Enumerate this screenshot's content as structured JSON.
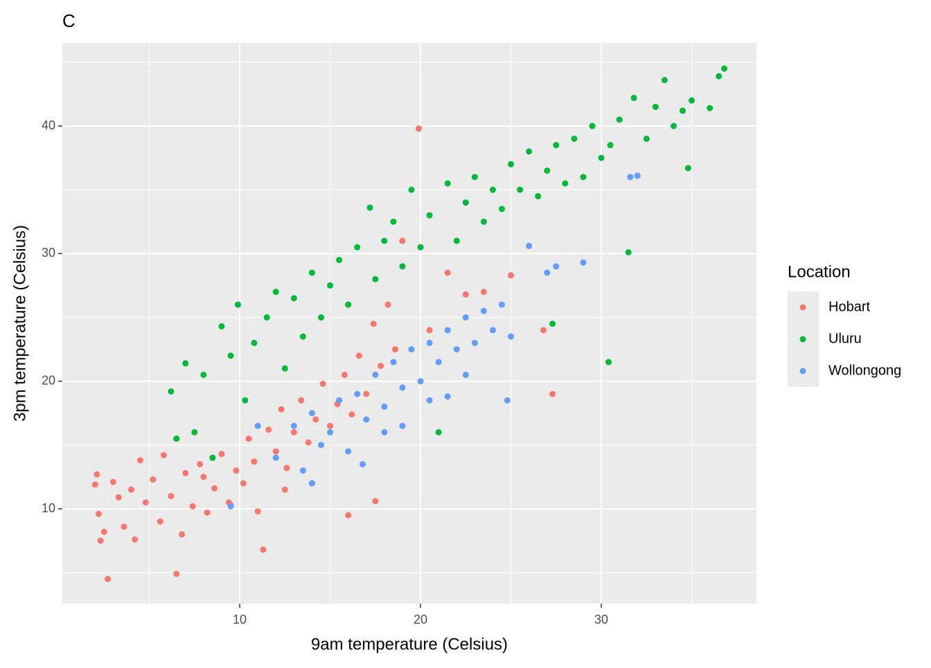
{
  "chart_data": {
    "type": "scatter",
    "title": "C",
    "x_label": "9am temperature (Celsius)",
    "y_label": "3pm temperature (Celsius)",
    "legend_title": "Location",
    "legend_position": "right",
    "xlim": [
      0.19,
      38.58
    ],
    "ylim": [
      2.57,
      46.51
    ],
    "xticks": [
      10,
      20,
      30
    ],
    "yticks": [
      10,
      20,
      30,
      40
    ],
    "x_minor_grid": [
      5,
      15,
      25,
      35
    ],
    "y_minor_grid": [
      5,
      15,
      25,
      35,
      45
    ],
    "grid": true,
    "panel_color": "#ebebeb",
    "series": [
      {
        "name": "Hobart",
        "color": "#F8766D",
        "x": [
          2.0,
          2.1,
          2.2,
          2.3,
          2.5,
          2.7,
          3.0,
          3.3,
          3.6,
          4.0,
          4.2,
          4.5,
          4.8,
          5.2,
          5.6,
          5.8,
          6.2,
          6.5,
          6.8,
          7.0,
          7.4,
          7.8,
          8.2,
          8.6,
          9.0,
          9.4,
          9.8,
          10.2,
          10.5,
          10.8,
          11.0,
          11.3,
          11.6,
          12.0,
          12.3,
          12.6,
          13.0,
          13.4,
          13.8,
          14.2,
          14.6,
          15.0,
          15.4,
          15.8,
          16.2,
          16.6,
          17.0,
          17.4,
          17.8,
          18.2,
          18.6,
          19.0,
          19.9,
          20.5,
          21.5,
          22.5,
          23.5,
          25.0,
          26.8,
          27.3,
          9.5,
          8.0,
          12.5,
          14.0,
          16.0,
          17.5
        ],
        "values": [
          11.9,
          12.7,
          9.6,
          7.5,
          8.2,
          4.5,
          12.1,
          10.9,
          8.6,
          11.5,
          7.6,
          13.8,
          10.5,
          12.3,
          9.0,
          14.2,
          11.0,
          4.9,
          8.0,
          12.8,
          10.2,
          13.5,
          9.7,
          11.6,
          14.3,
          10.5,
          13.0,
          12.0,
          15.5,
          13.7,
          9.8,
          6.8,
          16.2,
          14.5,
          17.8,
          13.2,
          16.0,
          18.5,
          15.2,
          17.0,
          19.8,
          16.5,
          18.2,
          20.5,
          17.4,
          22.0,
          19.0,
          24.5,
          21.2,
          26.0,
          22.5,
          31.0,
          39.8,
          24.0,
          28.5,
          26.8,
          27.0,
          28.3,
          24.0,
          19.0,
          10.3,
          12.5,
          11.5,
          12.0,
          9.5,
          10.6
        ]
      },
      {
        "name": "Uluru",
        "color": "#00BA38",
        "x": [
          6.2,
          6.5,
          7.0,
          7.5,
          8.0,
          8.5,
          9.0,
          9.5,
          9.9,
          10.3,
          10.8,
          11.5,
          12.0,
          12.5,
          13.0,
          13.5,
          14.0,
          14.5,
          15.0,
          15.5,
          16.0,
          16.5,
          17.2,
          17.5,
          18.0,
          18.5,
          19.0,
          19.5,
          20.0,
          20.5,
          21.0,
          21.5,
          22.0,
          22.5,
          23.0,
          23.5,
          24.0,
          24.5,
          25.0,
          25.5,
          26.0,
          26.5,
          27.0,
          27.3,
          27.5,
          28.0,
          28.5,
          29.0,
          29.5,
          30.0,
          30.4,
          30.5,
          31.0,
          31.5,
          31.8,
          32.5,
          33.0,
          33.5,
          34.0,
          34.5,
          35.0,
          36.0,
          36.5,
          36.8,
          34.8
        ],
        "values": [
          19.2,
          15.5,
          21.4,
          16.0,
          20.5,
          14.0,
          24.3,
          22.0,
          26.0,
          18.5,
          23.0,
          25.0,
          27.0,
          21.0,
          26.5,
          23.5,
          28.5,
          25.0,
          27.5,
          29.5,
          26.0,
          30.5,
          33.6,
          28.0,
          31.0,
          32.5,
          29.0,
          35.0,
          30.5,
          33.0,
          16.0,
          35.5,
          31.0,
          34.0,
          36.0,
          32.5,
          35.0,
          33.5,
          37.0,
          35.0,
          38.0,
          34.5,
          36.5,
          24.5,
          38.5,
          35.5,
          39.0,
          36.0,
          40.0,
          37.5,
          21.5,
          38.5,
          40.5,
          30.1,
          42.2,
          39.0,
          41.5,
          43.6,
          40.0,
          41.2,
          42.0,
          41.4,
          43.9,
          44.5,
          36.7
        ]
      },
      {
        "name": "Wollongong",
        "color": "#619CFF",
        "x": [
          9.5,
          11.0,
          12.0,
          13.0,
          13.5,
          14.0,
          14.5,
          15.0,
          15.5,
          16.0,
          16.5,
          17.0,
          17.5,
          18.0,
          18.5,
          19.0,
          19.5,
          20.0,
          20.5,
          21.0,
          21.5,
          22.0,
          22.5,
          23.0,
          23.5,
          24.0,
          24.5,
          24.8,
          25.0,
          26.0,
          27.0,
          27.5,
          29.0,
          31.6,
          32.0,
          18.0,
          19.0,
          20.5,
          16.8,
          14.0,
          21.5,
          22.5
        ],
        "values": [
          10.2,
          16.5,
          14.0,
          16.5,
          13.0,
          17.5,
          15.0,
          16.0,
          18.5,
          14.5,
          19.0,
          17.0,
          20.5,
          18.0,
          21.5,
          19.5,
          22.5,
          20.0,
          23.0,
          21.5,
          24.0,
          22.5,
          25.0,
          23.0,
          25.5,
          24.0,
          26.0,
          18.5,
          23.5,
          30.6,
          28.5,
          29.0,
          29.3,
          36.0,
          36.1,
          16.0,
          16.5,
          18.5,
          13.5,
          12.0,
          18.8,
          20.5
        ]
      }
    ]
  }
}
